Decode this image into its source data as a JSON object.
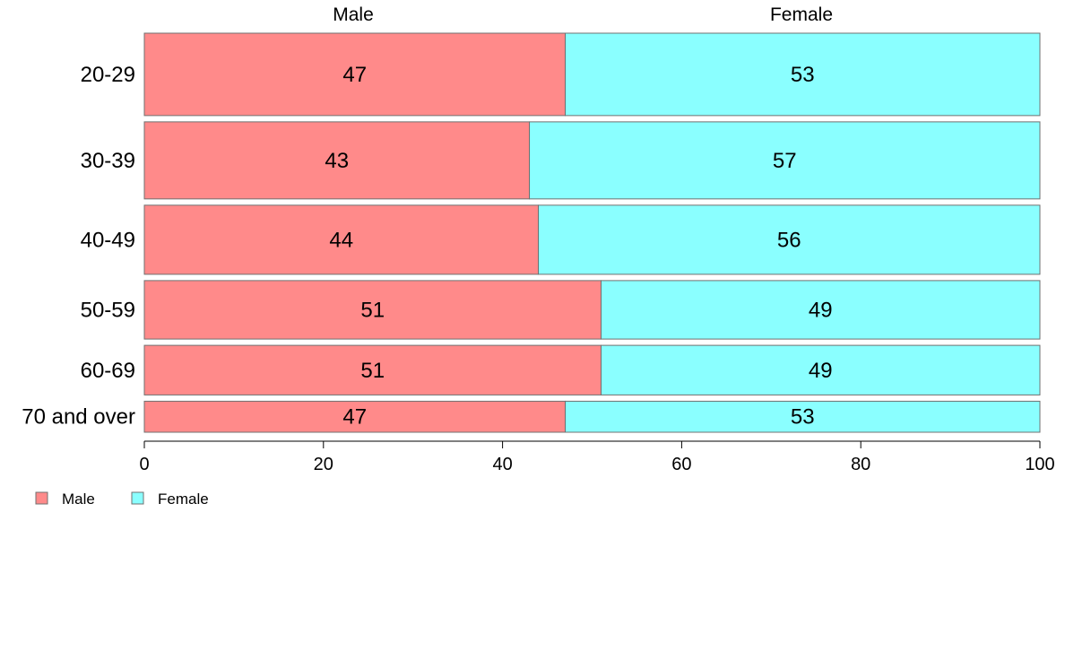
{
  "chart_data": {
    "type": "bar",
    "orientation": "horizontal",
    "stacked": true,
    "title": "",
    "xlabel": "",
    "ylabel": "",
    "xlim": [
      0,
      100
    ],
    "x_ticks": [
      0,
      20,
      40,
      60,
      80,
      100
    ],
    "categories": [
      "20-29",
      "30-39",
      "40-49",
      "50-59",
      "60-69",
      "70 and over"
    ],
    "category_weights": [
      93,
      87,
      78,
      66,
      56,
      35
    ],
    "series": [
      {
        "name": "Male",
        "values": [
          47,
          43,
          44,
          51,
          51,
          47
        ],
        "color": "#FF8A8A"
      },
      {
        "name": "Female",
        "values": [
          53,
          57,
          56,
          49,
          49,
          53
        ],
        "color": "#8AFFFF"
      }
    ],
    "top_labels": [
      "Male",
      "Female"
    ],
    "legend": {
      "position": "bottom-left",
      "entries": [
        "Male",
        "Female"
      ]
    },
    "grid": false
  }
}
